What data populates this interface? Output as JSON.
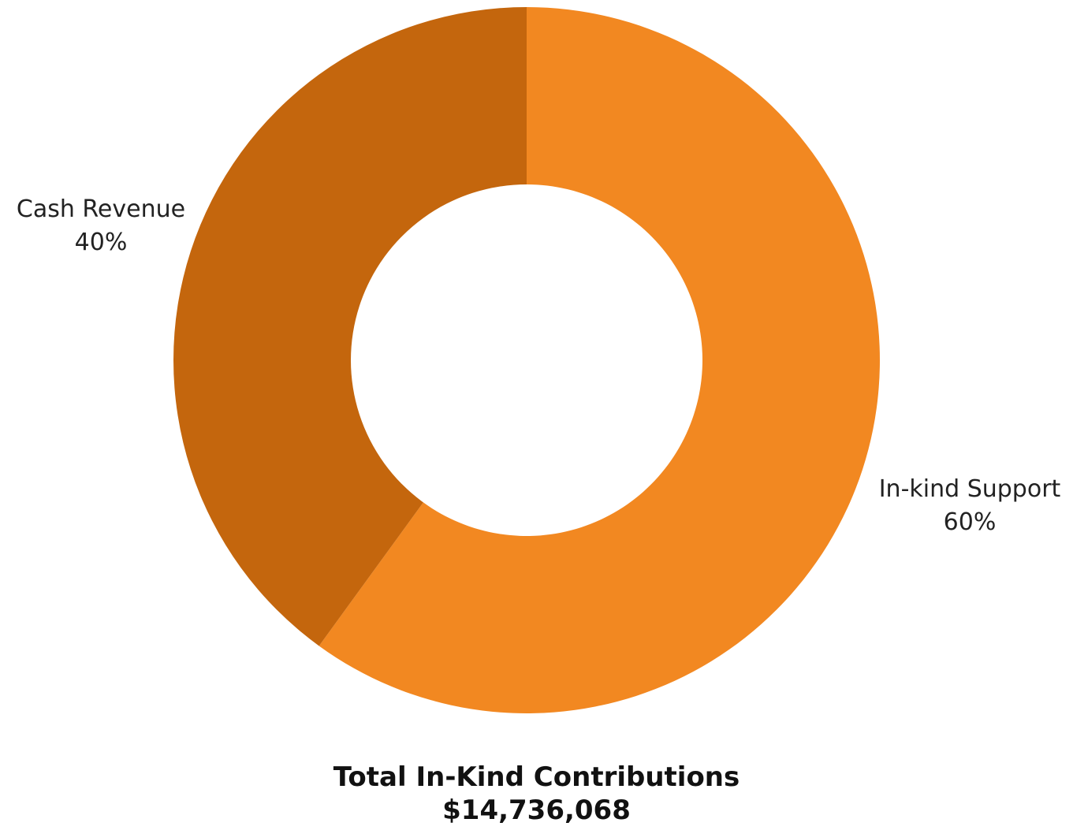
{
  "chart_data": {
    "type": "pie",
    "variant": "donut",
    "title": "Total In-Kind Contributions",
    "subtitle": "$14,736,068",
    "slices": [
      {
        "label": "In-kind Support",
        "value": 60,
        "value_label": "60%",
        "color": "#F28821"
      },
      {
        "label": "Cash Revenue",
        "value": 40,
        "value_label": "40%",
        "color": "#C4660D"
      }
    ],
    "start_angle_deg": 0,
    "direction": "clockwise",
    "legend": "none"
  }
}
